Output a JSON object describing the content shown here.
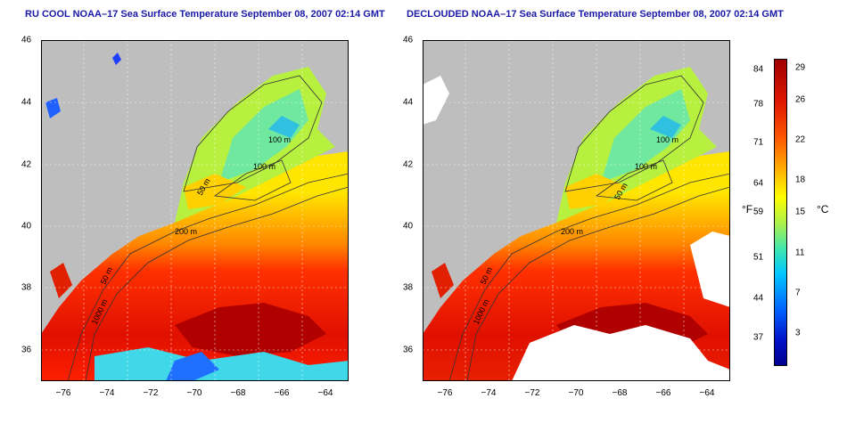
{
  "panels": [
    {
      "title": "RU COOL NOAA–17 Sea Surface Temperature September 08, 2007 02:14 GMT"
    },
    {
      "title": "DECLOUDED NOAA–17 Sea Surface Temperature September 08, 2007 02:14 GMT"
    }
  ],
  "axes": {
    "lat_ticks": [
      "46",
      "44",
      "42",
      "40",
      "38",
      "36"
    ],
    "lon_ticks": [
      "−76",
      "−74",
      "−72",
      "−70",
      "−68",
      "−66",
      "−64"
    ],
    "lat_range": [
      35,
      46
    ],
    "lon_range": [
      -77,
      -63
    ]
  },
  "contour_labels": [
    "100 m",
    "100 m",
    "50 m",
    "200 m",
    "50 m",
    "1000 m"
  ],
  "colorbar": {
    "f_ticks": [
      "84",
      "78",
      "71",
      "64",
      "59",
      "51",
      "44",
      "37"
    ],
    "c_ticks": [
      "29",
      "26",
      "22",
      "18",
      "15",
      "11",
      "7",
      "3"
    ],
    "unit_f": "°F",
    "unit_c": "°C"
  },
  "colors": {
    "land": "#bebebe",
    "cloud_white": "#ffffff",
    "warm": "#e8200a",
    "cool": "#40e0d0",
    "title": "#1a1aa8"
  }
}
